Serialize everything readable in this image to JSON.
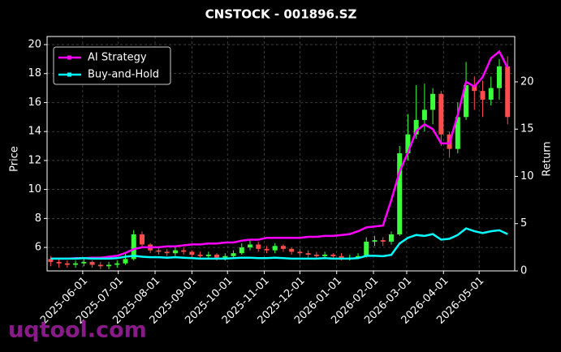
{
  "chart_data": {
    "type": "candlestick",
    "title": "CNSTOCK - 001896.SZ",
    "y_label": "Price",
    "y2_label": "Return",
    "watermark": "uqtool.com",
    "legend": "upper left",
    "grid": true,
    "x": [
      "2025-05-05",
      "2025-05-12",
      "2025-05-19",
      "2025-05-26",
      "2025-06-02",
      "2025-06-09",
      "2025-06-16",
      "2025-06-23",
      "2025-06-30",
      "2025-07-07",
      "2025-07-14",
      "2025-07-21",
      "2025-07-28",
      "2025-08-04",
      "2025-08-11",
      "2025-08-18",
      "2025-08-25",
      "2025-09-01",
      "2025-09-08",
      "2025-09-15",
      "2025-09-22",
      "2025-09-29",
      "2025-10-06",
      "2025-10-13",
      "2025-10-20",
      "2025-10-27",
      "2025-11-03",
      "2025-11-10",
      "2025-11-17",
      "2025-11-24",
      "2025-12-01",
      "2025-12-08",
      "2025-12-15",
      "2025-12-22",
      "2025-12-29",
      "2026-01-05",
      "2026-01-12",
      "2026-01-19",
      "2026-01-26",
      "2026-02-02",
      "2026-02-09",
      "2026-02-16",
      "2026-02-23",
      "2026-03-02",
      "2026-03-09",
      "2026-03-16",
      "2026-03-23",
      "2026-03-30",
      "2026-04-06",
      "2026-04-13",
      "2026-04-20",
      "2026-04-27",
      "2026-05-04",
      "2026-05-11",
      "2026-05-18",
      "2026-05-25"
    ],
    "candles": {
      "up_color": "#3cff3c",
      "down_color": "#ff4d4d",
      "open": [
        5.2,
        5.0,
        4.9,
        4.8,
        4.9,
        5.0,
        4.8,
        4.7,
        4.8,
        4.9,
        5.2,
        6.9,
        6.2,
        5.8,
        5.7,
        5.6,
        5.8,
        5.7,
        5.5,
        5.4,
        5.5,
        5.3,
        5.4,
        5.6,
        6.0,
        6.2,
        5.9,
        5.8,
        6.1,
        5.9,
        5.7,
        5.6,
        5.5,
        5.4,
        5.5,
        5.4,
        5.3,
        5.3,
        5.4,
        6.4,
        6.5,
        6.4,
        6.9,
        12.5,
        13.8,
        14.8,
        15.5,
        16.6,
        13.8,
        12.8,
        15.0,
        17.2,
        16.8,
        16.2,
        17.0,
        18.5
      ],
      "high": [
        5.4,
        5.2,
        5.1,
        5.1,
        5.2,
        5.1,
        5.0,
        5.0,
        5.1,
        5.6,
        7.2,
        7.1,
        6.3,
        6.0,
        5.9,
        6.0,
        6.0,
        5.8,
        5.7,
        5.7,
        5.6,
        5.6,
        5.8,
        6.3,
        6.5,
        6.4,
        6.1,
        6.3,
        6.2,
        6.0,
        5.9,
        5.8,
        5.7,
        5.7,
        5.6,
        5.6,
        5.5,
        5.6,
        6.7,
        6.8,
        6.7,
        7.1,
        13.0,
        15.2,
        17.2,
        17.3,
        17.0,
        16.8,
        14.0,
        16.0,
        18.8,
        17.8,
        17.5,
        17.8,
        19.0,
        19.2
      ],
      "low": [
        4.7,
        4.6,
        4.6,
        4.6,
        4.7,
        4.6,
        4.5,
        4.5,
        4.6,
        4.8,
        5.1,
        6.0,
        5.6,
        5.5,
        5.4,
        5.4,
        5.5,
        5.3,
        5.2,
        5.2,
        5.1,
        5.1,
        5.2,
        5.5,
        5.8,
        5.7,
        5.6,
        5.6,
        5.7,
        5.5,
        5.4,
        5.3,
        5.2,
        5.2,
        5.2,
        5.1,
        5.1,
        5.2,
        5.3,
        6.1,
        6.1,
        6.2,
        6.8,
        12.0,
        13.5,
        14.0,
        14.5,
        13.0,
        12.2,
        12.5,
        14.8,
        15.5,
        15.0,
        15.8,
        16.2,
        14.5
      ],
      "close": [
        5.0,
        4.9,
        4.8,
        4.9,
        5.0,
        4.8,
        4.7,
        4.8,
        4.9,
        5.2,
        6.9,
        6.2,
        5.8,
        5.7,
        5.6,
        5.8,
        5.7,
        5.5,
        5.4,
        5.5,
        5.3,
        5.4,
        5.6,
        6.0,
        6.2,
        5.9,
        5.8,
        6.1,
        5.9,
        5.7,
        5.6,
        5.5,
        5.4,
        5.5,
        5.4,
        5.3,
        5.3,
        5.4,
        6.4,
        6.5,
        6.4,
        6.9,
        12.5,
        13.8,
        14.8,
        15.5,
        16.6,
        13.8,
        12.8,
        15.0,
        17.2,
        16.8,
        16.2,
        17.0,
        18.5,
        15.0
      ]
    },
    "series": [
      {
        "name": "AI Strategy",
        "color": "#ff00ff",
        "axis": "y2",
        "values": [
          1.3,
          1.3,
          1.3,
          1.35,
          1.35,
          1.4,
          1.4,
          1.5,
          1.6,
          1.9,
          2.3,
          2.5,
          2.5,
          2.5,
          2.6,
          2.6,
          2.7,
          2.8,
          2.8,
          2.9,
          2.9,
          3.0,
          3.0,
          3.2,
          3.3,
          3.3,
          3.5,
          3.5,
          3.5,
          3.5,
          3.5,
          3.6,
          3.6,
          3.7,
          3.7,
          3.8,
          3.9,
          4.2,
          4.6,
          4.7,
          4.8,
          7.5,
          10.5,
          12.5,
          14.8,
          15.5,
          15.0,
          13.5,
          13.5,
          16.5,
          20.0,
          19.5,
          20.5,
          22.5,
          23.2,
          21.5
        ]
      },
      {
        "name": "Buy-and-Hold",
        "color": "#00ffff",
        "axis": "y2",
        "values": [
          1.3,
          1.3,
          1.3,
          1.3,
          1.35,
          1.3,
          1.3,
          1.3,
          1.35,
          1.5,
          1.6,
          1.5,
          1.45,
          1.45,
          1.4,
          1.45,
          1.4,
          1.35,
          1.3,
          1.3,
          1.3,
          1.3,
          1.35,
          1.4,
          1.4,
          1.35,
          1.35,
          1.4,
          1.35,
          1.3,
          1.3,
          1.3,
          1.3,
          1.35,
          1.3,
          1.3,
          1.3,
          1.35,
          1.6,
          1.6,
          1.55,
          1.7,
          2.9,
          3.5,
          3.8,
          3.7,
          3.9,
          3.3,
          3.4,
          3.8,
          4.5,
          4.2,
          4.0,
          4.2,
          4.3,
          3.9
        ]
      }
    ],
    "xlim": [
      "2025-05-02",
      "2026-05-31"
    ],
    "xticks": [
      "2025-06-01",
      "2025-07-01",
      "2025-08-01",
      "2025-09-01",
      "2025-10-01",
      "2025-11-01",
      "2025-12-01",
      "2026-01-01",
      "2026-02-01",
      "2026-03-01",
      "2026-04-01",
      "2026-05-01"
    ],
    "ylim": [
      4.38,
      20.56
    ],
    "yticks": [
      6,
      8,
      10,
      12,
      14,
      16,
      18,
      20
    ],
    "y2lim": [
      0,
      24.8
    ],
    "y2ticks": [
      0,
      5,
      10,
      15,
      20
    ]
  }
}
